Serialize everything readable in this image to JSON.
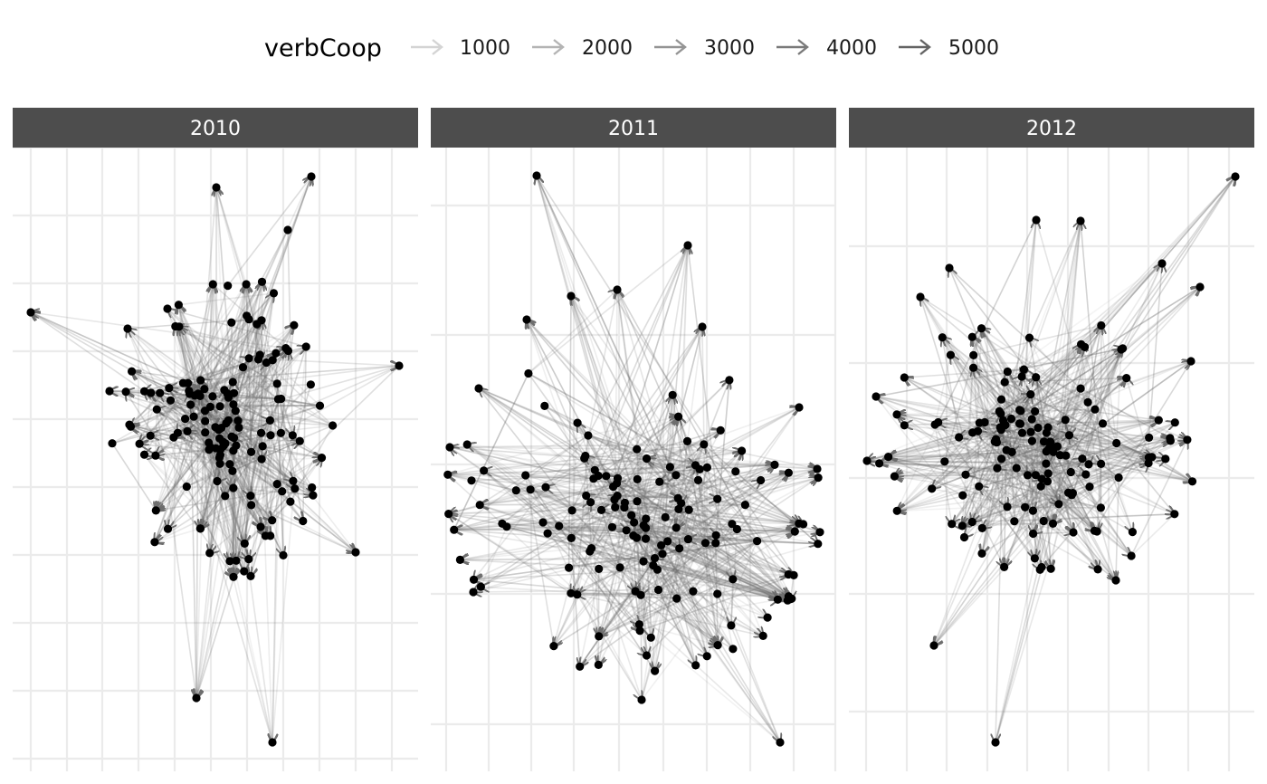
{
  "legend": {
    "title": "verbCoop",
    "items": [
      {
        "label": "1000",
        "value": 1000,
        "color": "#d4d4d4"
      },
      {
        "label": "2000",
        "value": 2000,
        "color": "#b4b4b4"
      },
      {
        "label": "3000",
        "value": 3000,
        "color": "#949494"
      },
      {
        "label": "4000",
        "value": 4000,
        "color": "#7a7a7a"
      },
      {
        "label": "5000",
        "value": 5000,
        "color": "#646464"
      }
    ]
  },
  "facets": [
    {
      "label": "2010"
    },
    {
      "label": "2011"
    },
    {
      "label": "2012"
    }
  ],
  "colors": {
    "strip": "#4d4d4d",
    "node": "#000000",
    "edge": "#6e6e6e",
    "grid": "#ebebeb",
    "background": "#ffffff"
  }
}
